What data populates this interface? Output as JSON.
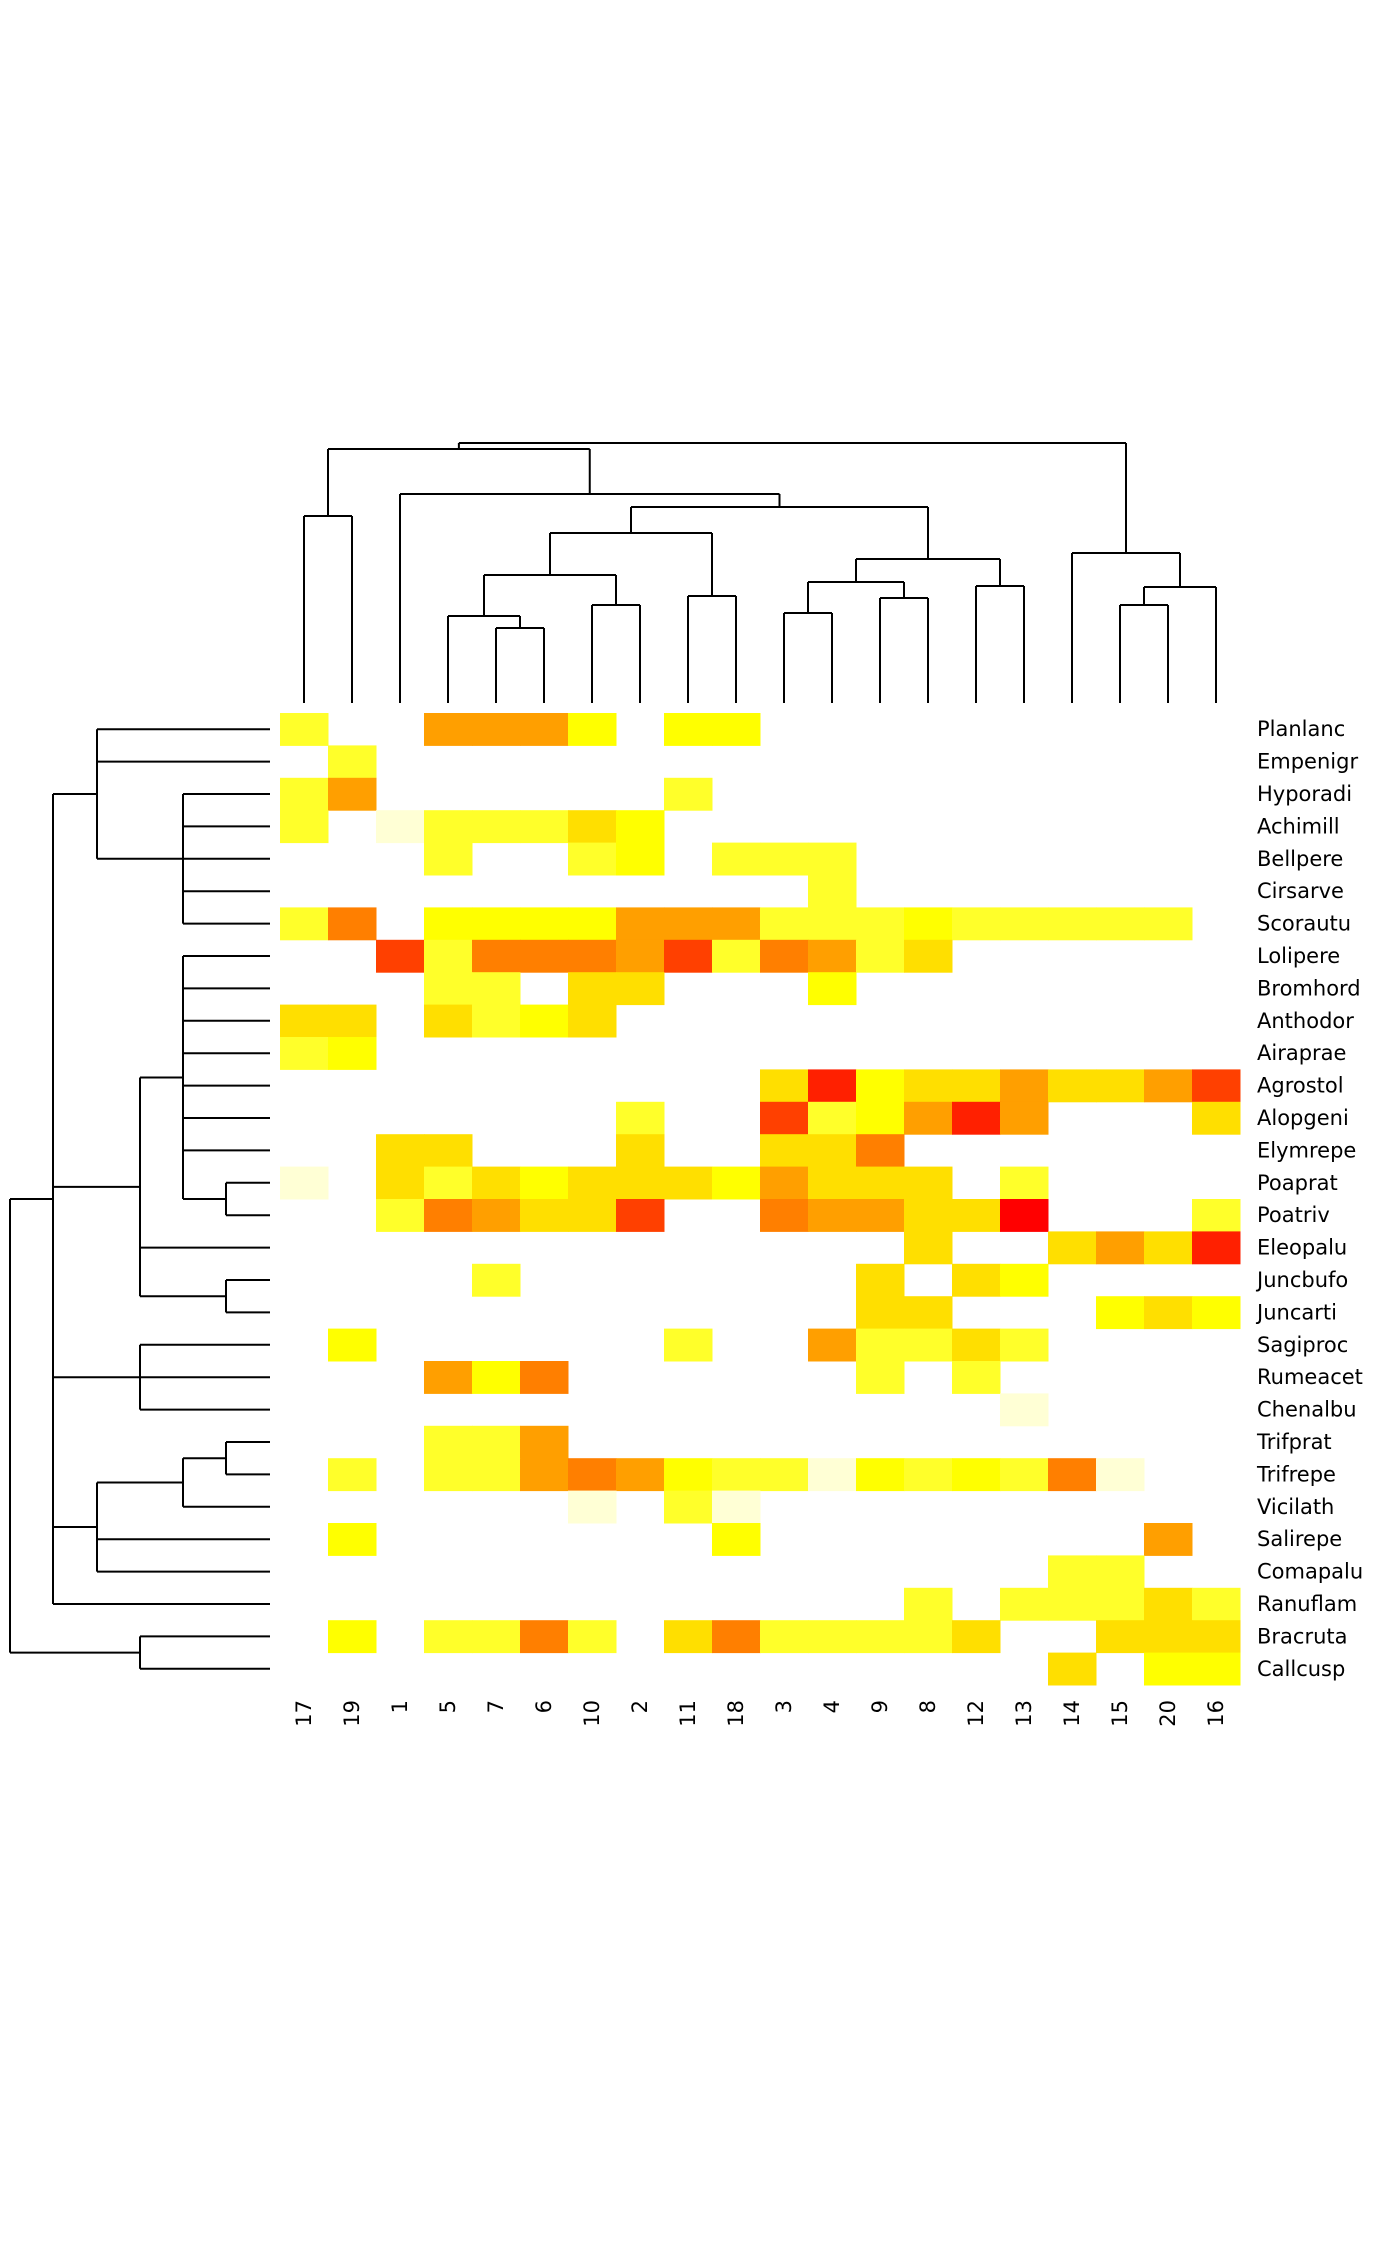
{
  "chart_data": {
    "type": "heatmap",
    "title": "",
    "xlabel": "",
    "ylabel": "",
    "columns": [
      "17",
      "19",
      "1",
      "5",
      "7",
      "6",
      "10",
      "2",
      "11",
      "18",
      "3",
      "4",
      "9",
      "8",
      "12",
      "13",
      "14",
      "15",
      "20",
      "16"
    ],
    "rows": [
      "Planlanc",
      "Empenigr",
      "Hyporadi",
      "Achimill",
      "Bellpere",
      "Cirsarve",
      "Scorautu",
      "Lolipere",
      "Bromhord",
      "Anthodor",
      "Airaprae",
      "Agrostol",
      "Alopgeni",
      "Elymrepe",
      "Poaprat",
      "Poatriv",
      "Eleopalu",
      "Juncbufo",
      "Juncarti",
      "Sagiproc",
      "Rumeacet",
      "Chenalbu",
      "Trifprat",
      "Trifrepe",
      "Vicilath",
      "Salirepe",
      "Comapalu",
      "Ranuflam",
      "Bracruta",
      "Callcusp"
    ],
    "value_scale": "ordinal colour level 0-9 (0 = absent)",
    "palette": [
      "#FFFFFF",
      "#FFFFD5",
      "#FFFF2A",
      "#FFFF00",
      "#FFDF00",
      "#FF9F00",
      "#FF7F00",
      "#FF4000",
      "#FF2000",
      "#FF0000"
    ],
    "values": [
      [
        2,
        0,
        0,
        5,
        5,
        5,
        3,
        0,
        3,
        3,
        0,
        0,
        0,
        0,
        0,
        0,
        0,
        0,
        0,
        0
      ],
      [
        0,
        2,
        0,
        0,
        0,
        0,
        0,
        0,
        0,
        0,
        0,
        0,
        0,
        0,
        0,
        0,
        0,
        0,
        0,
        0
      ],
      [
        2,
        5,
        0,
        0,
        0,
        0,
        0,
        0,
        2,
        0,
        0,
        0,
        0,
        0,
        0,
        0,
        0,
        0,
        0,
        0
      ],
      [
        2,
        0,
        1,
        2,
        2,
        2,
        4,
        3,
        0,
        0,
        0,
        0,
        0,
        0,
        0,
        0,
        0,
        0,
        0,
        0
      ],
      [
        0,
        0,
        0,
        2,
        0,
        0,
        2,
        3,
        0,
        2,
        2,
        2,
        0,
        0,
        0,
        0,
        0,
        0,
        0,
        0
      ],
      [
        0,
        0,
        0,
        0,
        0,
        0,
        0,
        0,
        0,
        0,
        0,
        2,
        0,
        0,
        0,
        0,
        0,
        0,
        0,
        0
      ],
      [
        2,
        6,
        0,
        3,
        3,
        3,
        3,
        5,
        5,
        5,
        2,
        2,
        2,
        3,
        2,
        2,
        2,
        2,
        2,
        0
      ],
      [
        0,
        0,
        7,
        2,
        6,
        6,
        6,
        5,
        7,
        2,
        6,
        5,
        2,
        4,
        0,
        0,
        0,
        0,
        0,
        0
      ],
      [
        0,
        0,
        0,
        2,
        2,
        0,
        4,
        4,
        0,
        0,
        0,
        3,
        0,
        0,
        0,
        0,
        0,
        0,
        0,
        0
      ],
      [
        4,
        4,
        0,
        4,
        2,
        3,
        4,
        0,
        0,
        0,
        0,
        0,
        0,
        0,
        0,
        0,
        0,
        0,
        0,
        0
      ],
      [
        2,
        3,
        0,
        0,
        0,
        0,
        0,
        0,
        0,
        0,
        0,
        0,
        0,
        0,
        0,
        0,
        0,
        0,
        0,
        0
      ],
      [
        0,
        0,
        0,
        0,
        0,
        0,
        0,
        0,
        0,
        0,
        4,
        8,
        3,
        4,
        4,
        5,
        4,
        4,
        5,
        7
      ],
      [
        0,
        0,
        0,
        0,
        0,
        0,
        0,
        2,
        0,
        0,
        7,
        2,
        3,
        5,
        8,
        5,
        0,
        0,
        0,
        4
      ],
      [
        0,
        0,
        4,
        4,
        0,
        0,
        0,
        4,
        0,
        0,
        4,
        4,
        6,
        0,
        0,
        0,
        0,
        0,
        0,
        0
      ],
      [
        1,
        0,
        4,
        2,
        4,
        3,
        4,
        4,
        4,
        3,
        5,
        4,
        4,
        4,
        0,
        2,
        0,
        0,
        0,
        0
      ],
      [
        0,
        0,
        2,
        6,
        5,
        4,
        4,
        7,
        0,
        0,
        6,
        5,
        5,
        4,
        4,
        9,
        0,
        0,
        0,
        2
      ],
      [
        0,
        0,
        0,
        0,
        0,
        0,
        0,
        0,
        0,
        0,
        0,
        0,
        0,
        4,
        0,
        0,
        4,
        5,
        4,
        8
      ],
      [
        0,
        0,
        0,
        0,
        2,
        0,
        0,
        0,
        0,
        0,
        0,
        0,
        4,
        0,
        4,
        3,
        0,
        0,
        0,
        0
      ],
      [
        0,
        0,
        0,
        0,
        0,
        0,
        0,
        0,
        0,
        0,
        0,
        0,
        4,
        4,
        0,
        0,
        0,
        3,
        4,
        3
      ],
      [
        0,
        3,
        0,
        0,
        0,
        0,
        0,
        0,
        2,
        0,
        0,
        5,
        2,
        2,
        4,
        2,
        0,
        0,
        0,
        0
      ],
      [
        0,
        0,
        0,
        5,
        3,
        6,
        0,
        0,
        0,
        0,
        0,
        0,
        2,
        0,
        2,
        0,
        0,
        0,
        0,
        0
      ],
      [
        0,
        0,
        0,
        0,
        0,
        0,
        0,
        0,
        0,
        0,
        0,
        0,
        0,
        0,
        0,
        1,
        0,
        0,
        0,
        0
      ],
      [
        0,
        0,
        0,
        2,
        2,
        5,
        0,
        0,
        0,
        0,
        0,
        0,
        0,
        0,
        0,
        0,
        0,
        0,
        0,
        0
      ],
      [
        0,
        2,
        0,
        2,
        2,
        5,
        6,
        5,
        3,
        2,
        2,
        1,
        3,
        2,
        3,
        2,
        6,
        1,
        0,
        0
      ],
      [
        0,
        0,
        0,
        0,
        0,
        0,
        1,
        0,
        2,
        1,
        0,
        0,
        0,
        0,
        0,
        0,
        0,
        0,
        0,
        0
      ],
      [
        0,
        3,
        0,
        0,
        0,
        0,
        0,
        0,
        0,
        3,
        0,
        0,
        0,
        0,
        0,
        0,
        0,
        0,
        5,
        0
      ],
      [
        0,
        0,
        0,
        0,
        0,
        0,
        0,
        0,
        0,
        0,
        0,
        0,
        0,
        0,
        0,
        0,
        2,
        2,
        0,
        0
      ],
      [
        0,
        0,
        0,
        0,
        0,
        0,
        0,
        0,
        0,
        0,
        0,
        0,
        0,
        2,
        0,
        2,
        2,
        2,
        4,
        2
      ],
      [
        0,
        3,
        0,
        2,
        2,
        6,
        2,
        0,
        4,
        6,
        2,
        2,
        2,
        2,
        4,
        0,
        0,
        4,
        4,
        4
      ],
      [
        0,
        0,
        0,
        0,
        0,
        0,
        0,
        0,
        0,
        0,
        0,
        0,
        0,
        0,
        0,
        0,
        4,
        0,
        3,
        3
      ]
    ],
    "column_dendrogram": "hierarchical clustering of columns (shown above heatmap)",
    "row_dendrogram": "hierarchical clustering of rows (shown left of heatmap)",
    "legend": "none",
    "grid": false
  }
}
